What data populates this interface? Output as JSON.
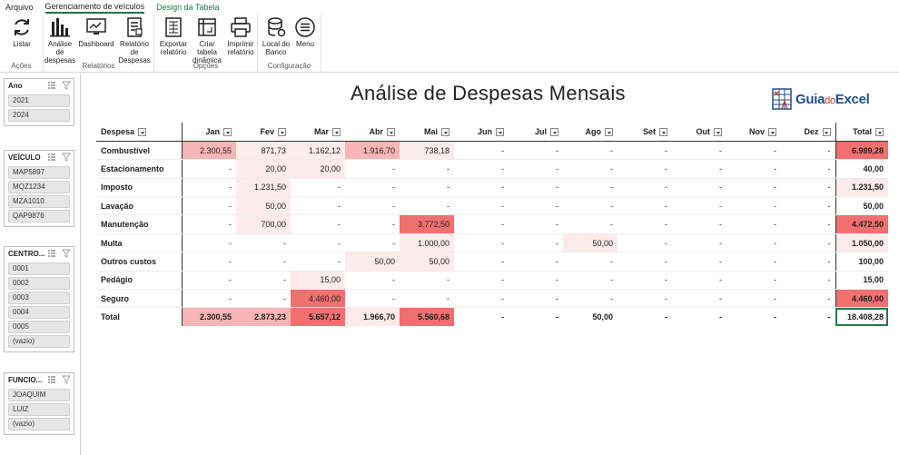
{
  "menu": {
    "tabs": [
      {
        "label": "Arquivo"
      },
      {
        "label": "Gerenciamento de veículos"
      },
      {
        "label": "Design da Tabela"
      }
    ]
  },
  "ribbon": {
    "groups": [
      {
        "label": "Ações",
        "buttons": [
          {
            "label": "Listar",
            "icon": "refresh-icon"
          }
        ]
      },
      {
        "label": "Relatórios",
        "buttons": [
          {
            "label": "Análise de despesas",
            "icon": "bar-chart-icon"
          },
          {
            "label": "Dashboard",
            "icon": "dashboard-icon"
          },
          {
            "label": "Relatório de Despesas",
            "icon": "report-icon"
          }
        ]
      },
      {
        "label": "Opções",
        "buttons": [
          {
            "label": "Exportar relatório",
            "icon": "export-icon"
          },
          {
            "label": "Criar tabela dinâmica",
            "icon": "pivot-table-icon"
          },
          {
            "label": "Imprimir relatório",
            "icon": "printer-icon"
          }
        ]
      },
      {
        "label": "Configuração",
        "buttons": [
          {
            "label": "Local do Banco",
            "icon": "database-icon"
          },
          {
            "label": "Menu",
            "icon": "menu-icon"
          }
        ]
      }
    ]
  },
  "slicers": [
    {
      "title": "Ano",
      "items": [
        "2021",
        "2024"
      ]
    },
    {
      "title": "VEÍCULO",
      "items": [
        "MAP5897",
        "MQZ1234",
        "MZA1010",
        "QAP9876"
      ]
    },
    {
      "title": "CENTRO...",
      "items": [
        "0001",
        "0002",
        "0003",
        "0004",
        "0005",
        "(vazio)"
      ]
    },
    {
      "title": "FUNCIO...",
      "items": [
        "JOAQUIM",
        "LUIZ",
        "(vazio)"
      ]
    }
  ],
  "report": {
    "title": "Análise de Despesas Mensais",
    "logo": {
      "part1": "Guia",
      "part2": "do",
      "part3": "Excel"
    }
  },
  "pivot": {
    "headers": [
      "Despesa",
      "Jan",
      "Fev",
      "Mar",
      "Abr",
      "Mai",
      "Jun",
      "Jul",
      "Ago",
      "Set",
      "Out",
      "Nov",
      "Dez",
      "Total"
    ],
    "rows": [
      {
        "label": "Combustível",
        "values": [
          "2.300,55",
          "871,73",
          "1.162,12",
          "1.916,70",
          "738,18",
          "-",
          "-",
          "-",
          "-",
          "-",
          "-",
          "-"
        ],
        "total": "6.989,28"
      },
      {
        "label": "Estacionamento",
        "values": [
          "-",
          "20,00",
          "20,00",
          "-",
          "-",
          "-",
          "-",
          "-",
          "-",
          "-",
          "-",
          "-"
        ],
        "total": "40,00"
      },
      {
        "label": "Imposto",
        "values": [
          "-",
          "1.231,50",
          "-",
          "-",
          "-",
          "-",
          "-",
          "-",
          "-",
          "-",
          "-",
          "-"
        ],
        "total": "1.231,50"
      },
      {
        "label": "Lavação",
        "values": [
          "-",
          "50,00",
          "-",
          "-",
          "-",
          "-",
          "-",
          "-",
          "-",
          "-",
          "-",
          "-"
        ],
        "total": "50,00"
      },
      {
        "label": "Manutenção",
        "values": [
          "-",
          "700,00",
          "-",
          "-",
          "3.772,50",
          "-",
          "-",
          "-",
          "-",
          "-",
          "-",
          "-"
        ],
        "total": "4.472,50"
      },
      {
        "label": "Multa",
        "values": [
          "-",
          "-",
          "-",
          "-",
          "1.000,00",
          "-",
          "-",
          "50,00",
          "-",
          "-",
          "-",
          "-"
        ],
        "total": "1.050,00"
      },
      {
        "label": "Outros custos",
        "values": [
          "-",
          "-",
          "-",
          "50,00",
          "50,00",
          "-",
          "-",
          "-",
          "-",
          "-",
          "-",
          "-"
        ],
        "total": "100,00"
      },
      {
        "label": "Pedágio",
        "values": [
          "-",
          "-",
          "15,00",
          "-",
          "-",
          "-",
          "-",
          "-",
          "-",
          "-",
          "-",
          "-"
        ],
        "total": "15,00"
      },
      {
        "label": "Seguro",
        "values": [
          "-",
          "-",
          "4.460,00",
          "-",
          "-",
          "-",
          "-",
          "-",
          "-",
          "-",
          "-",
          "-"
        ],
        "total": "4.460,00"
      }
    ],
    "grand_total": {
      "label": "Total",
      "values": [
        "2.300,55",
        "2.873,23",
        "5.657,12",
        "1.966,70",
        "5.560,68",
        "-",
        "-",
        "50,00",
        "-",
        "-",
        "-",
        "-"
      ],
      "total": "18.408,28"
    },
    "colors": {
      "low": "#fdeaea",
      "mid": "#f7b5b5",
      "high": "#f07070"
    }
  }
}
